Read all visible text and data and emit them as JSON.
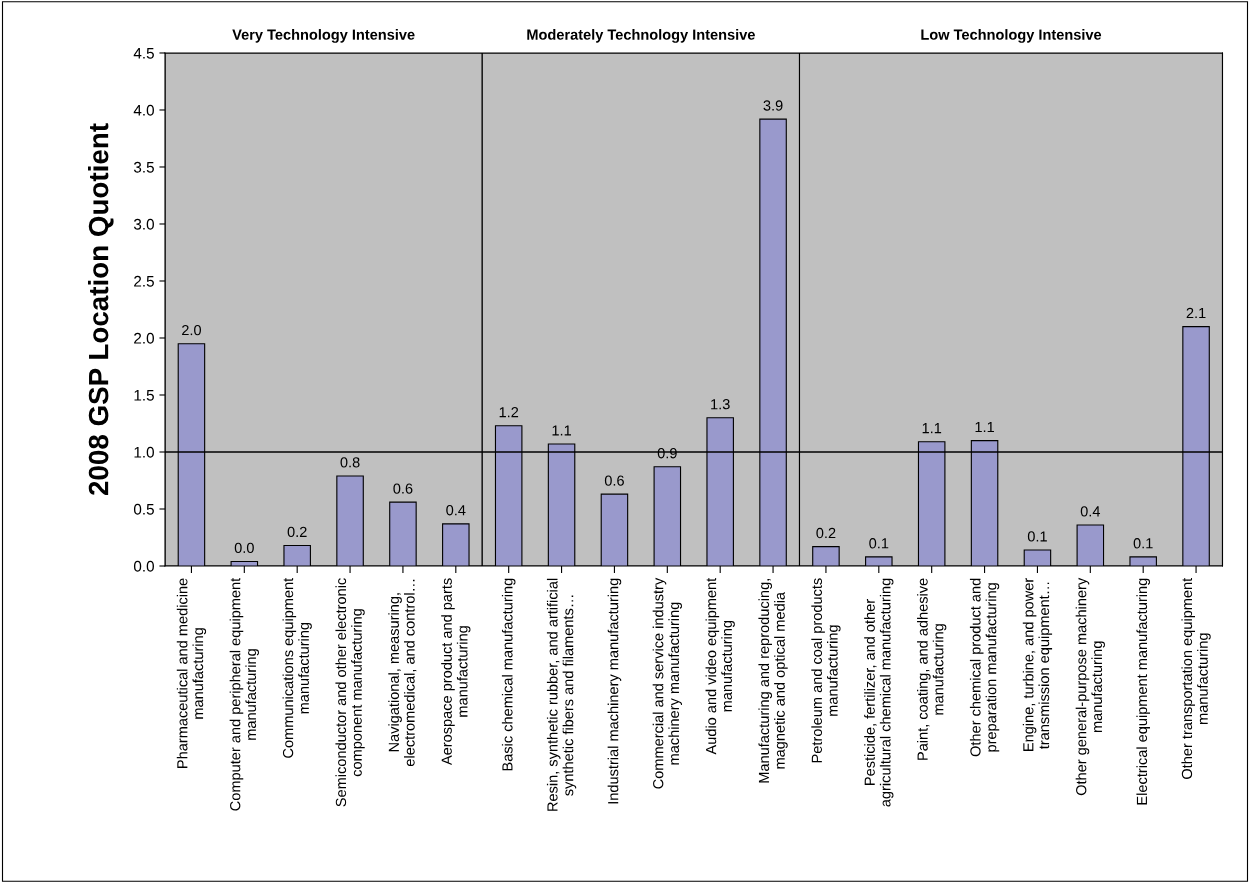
{
  "chart_data": {
    "type": "bar",
    "ylabel": "2008 GSP Location Quotient",
    "categories": [
      "Pharmaceutical and medicine\nmanufacturing",
      "Computer and peripheral equipment\nmanufacturing",
      "Communications equipment\nmanufacturing",
      "Semiconductor and other electronic\ncomponent manufacturing",
      "Navigational, measuring,\nelectromedical, and control…",
      "Aerospace product and parts\nmanufacturing",
      "Basic chemical manufacturing",
      "Resin, synthetic rubber, and artificial\nsynthetic fibers and filaments…",
      "Industrial machinery manufacturing",
      "Commercial and service industry\nmachinery manufacturing",
      "Audio and video equipment\nmanufacturing",
      "Manufacturing and reproducing,\nmagnetic and optical media",
      "Petroleum and coal products\nmanufacturing",
      "Pesticide, fertilizer, and other\nagricultural chemical manufacturing",
      "Paint, coating, and adhesive\nmanufacturing",
      "Other chemical product and\npreparation manufacturing",
      "Engine, turbine, and power\ntransmission equipment…",
      "Other general-purpose machinery\nmanufacturing",
      "Electrical equipment manufacturing",
      "Other transportation equipment\nmanufacturing"
    ],
    "values": [
      1.95,
      0.04,
      0.18,
      0.79,
      0.56,
      0.37,
      1.23,
      1.07,
      0.63,
      0.87,
      1.3,
      3.92,
      0.17,
      0.08,
      1.09,
      1.1,
      0.14,
      0.36,
      0.08,
      2.1
    ],
    "value_labels": [
      "2.0",
      "0.0",
      "0.2",
      "0.8",
      "0.6",
      "0.4",
      "1.2",
      "1.1",
      "0.6",
      "0.9",
      "1.3",
      "3.9",
      "0.2",
      "0.1",
      "1.1",
      "1.1",
      "0.1",
      "0.4",
      "0.1",
      "2.1"
    ],
    "color": "#9999cc",
    "ylim": [
      0,
      4.5
    ],
    "yticks": [
      {
        "value": 0,
        "label": "0.0"
      },
      0.5,
      {
        "value": 1,
        "label": "1.0"
      },
      1.5,
      {
        "value": 2,
        "label": "2.0"
      },
      2.5,
      {
        "value": 3,
        "label": "3.0"
      },
      3.5,
      {
        "value": 4,
        "label": "4.0"
      },
      4.5
    ],
    "ref_lines": [
      {
        "axis": "y",
        "value": 1.0,
        "color": "#000000"
      }
    ],
    "bands": [
      {
        "axis": "x",
        "from": "Pharmaceutical and medicine\nmanufacturing",
        "to": "Aerospace product and parts\nmanufacturing",
        "label": "Very Technology Intensive",
        "color": "#c0c0c0"
      },
      {
        "axis": "x",
        "from": "Basic chemical manufacturing",
        "to": "Manufacturing and reproducing,\nmagnetic and optical media",
        "label": "Moderately Technology Intensive",
        "color": "#c0c0c0"
      },
      {
        "axis": "x",
        "from": "Petroleum and coal products\nmanufacturing",
        "to": "Other transportation equipment\nmanufacturing",
        "label": "Low Technology Intensive",
        "color": "#c0c0c0"
      }
    ],
    "grid": false,
    "legend": false
  }
}
